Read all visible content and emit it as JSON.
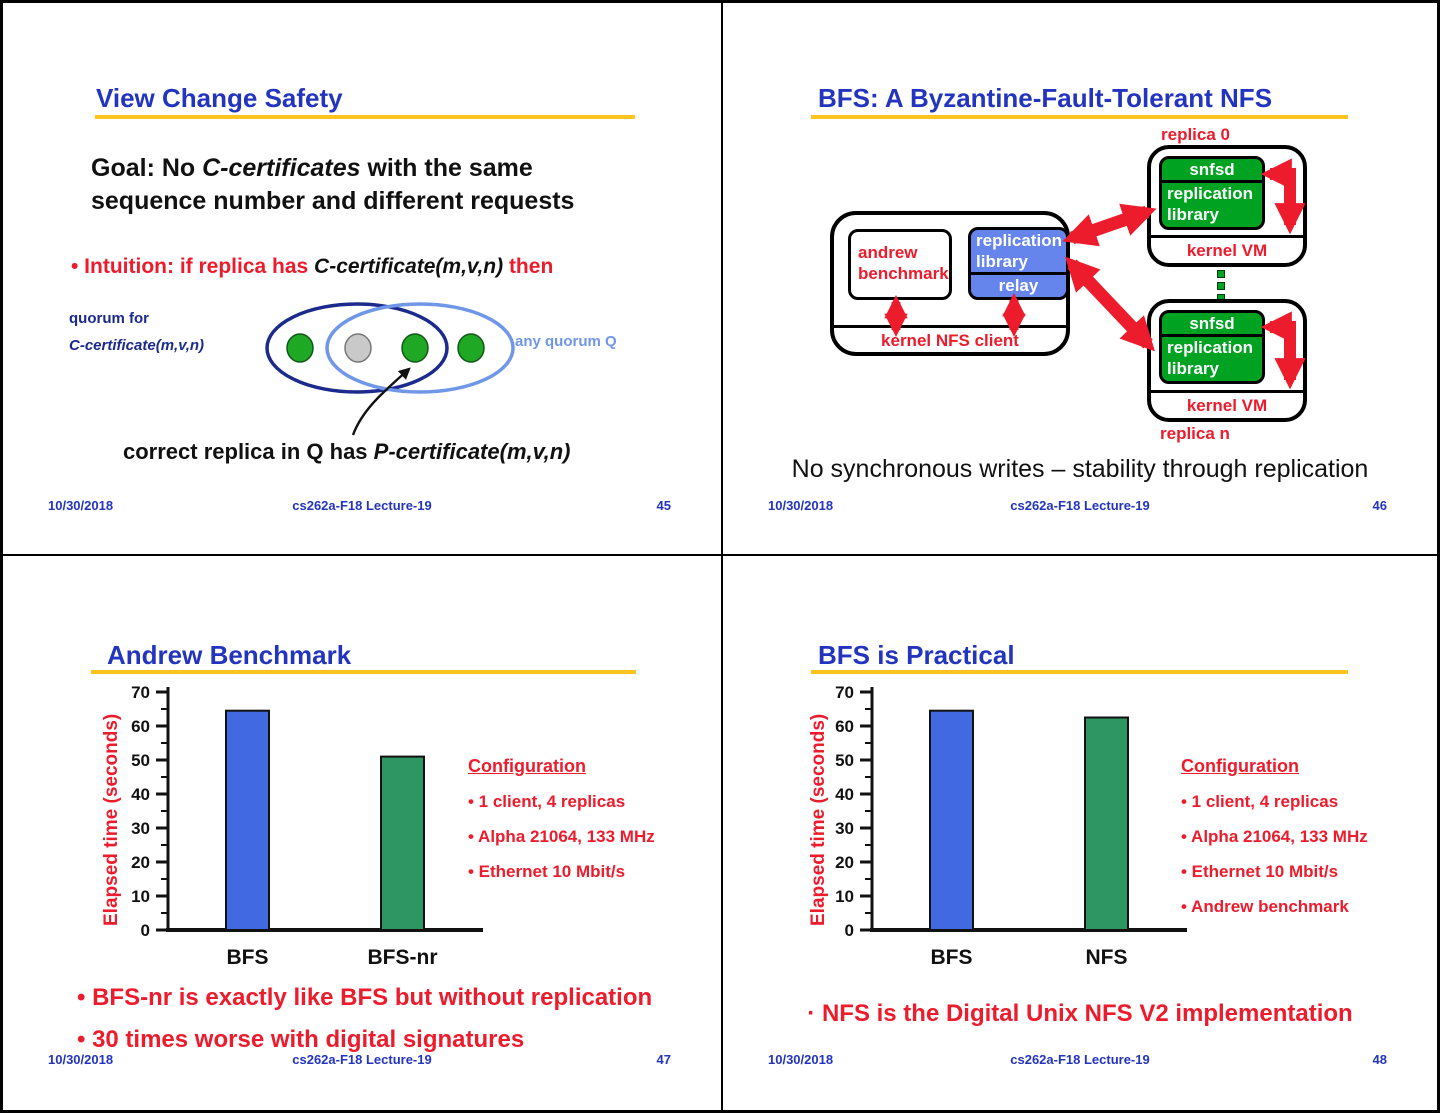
{
  "footer": {
    "date": "10/30/2018",
    "center": "cs262a-F18 Lecture-19"
  },
  "colors": {
    "accent_blue": "#2334BE",
    "gold_rule": "#FFC41E",
    "red": "#EC1C2D",
    "diagram_green": "#00A221",
    "diagram_blue": "#6584EC",
    "bar_blue": "#4169E1",
    "bar_green": "#2E9663"
  },
  "slide45": {
    "title": "View Change Safety",
    "page": "45",
    "goal_line1_prefix": "Goal: No ",
    "goal_line1_italic": "C-certificates",
    "goal_line1_suffix": " with the same",
    "goal_line2": "sequence number and different requests",
    "intuition_prefix": "• Intuition: if replica has ",
    "intuition_italic": "C-certificate(m,v,n)",
    "intuition_suffix": " then",
    "quorum_label_line1": "quorum for",
    "quorum_label_line2": "C-certificate(m,v,n)",
    "any_quorum_label": "any quorum Q",
    "correct_prefix": "correct replica in Q has ",
    "correct_italic": "P-certificate(m,v,n)"
  },
  "slide46": {
    "title": "BFS: A Byzantine-Fault-Tolerant NFS",
    "page": "46",
    "replica0_label": "replica 0",
    "replican_label": "replica n",
    "snfsd": "snfsd",
    "repl_line1": "replication",
    "repl_line2": "library",
    "kernel_vm": "kernel VM",
    "andrew_line1": "andrew",
    "andrew_line2": "benchmark",
    "relay": "relay",
    "kernel_nfs_client": "kernel NFS client",
    "caption": "No synchronous writes – stability through replication"
  },
  "slide47": {
    "title": "Andrew Benchmark",
    "page": "47",
    "config_title": "Configuration",
    "config_items": [
      "• 1 client, 4 replicas",
      "• Alpha 21064, 133 MHz",
      "• Ethernet 10 Mbit/s"
    ],
    "bullet1": "• BFS-nr is exactly like BFS but without replication",
    "bullet2": "• 30 times worse with digital signatures"
  },
  "slide48": {
    "title": "BFS is Practical",
    "page": "48",
    "config_title": "Configuration",
    "config_items": [
      "• 1 client, 4 replicas",
      "• Alpha 21064, 133 MHz",
      "• Ethernet 10 Mbit/s",
      "• Andrew benchmark"
    ],
    "bullet1": "· NFS is the Digital Unix NFS V2 implementation"
  },
  "chart_data": [
    {
      "type": "bar",
      "title": "Andrew Benchmark",
      "categories": [
        "BFS",
        "BFS-nr"
      ],
      "values": [
        64.5,
        51
      ],
      "ylabel": "Elapsed time (seconds)",
      "ylim": [
        0,
        70
      ],
      "ytick_step": 10,
      "minor_tick_step": 5,
      "grid": false,
      "bar_colors": [
        "#4169E1",
        "#2E9663"
      ]
    },
    {
      "type": "bar",
      "title": "BFS is Practical",
      "categories": [
        "BFS",
        "NFS"
      ],
      "values": [
        64.5,
        62.5
      ],
      "ylabel": "Elapsed time (seconds)",
      "ylim": [
        0,
        70
      ],
      "ytick_step": 10,
      "minor_tick_step": 5,
      "grid": false,
      "bar_colors": [
        "#4169E1",
        "#2E9663"
      ]
    }
  ]
}
